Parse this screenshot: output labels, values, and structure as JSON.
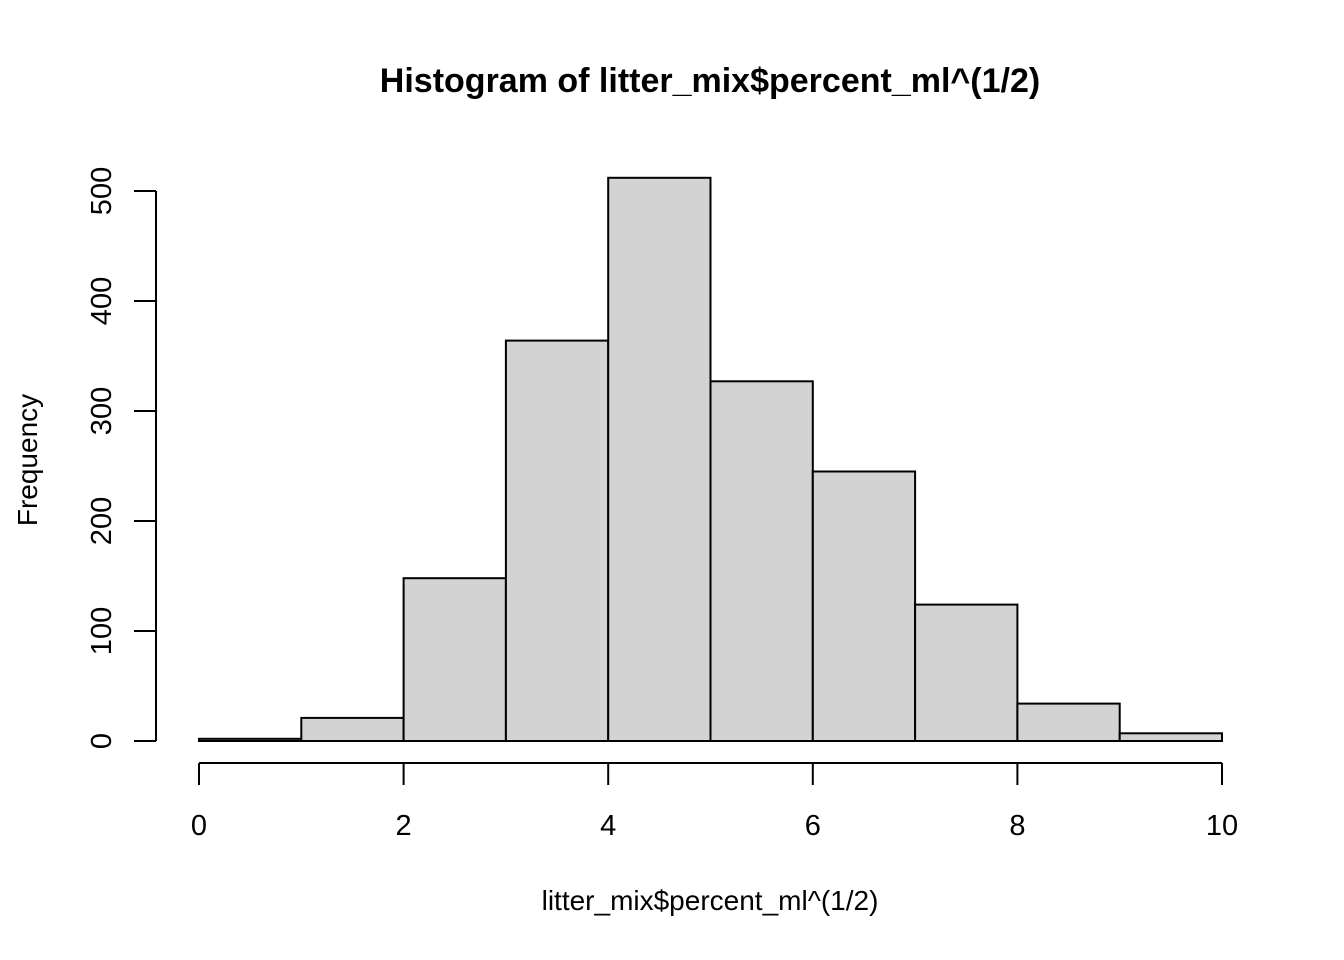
{
  "chart_data": {
    "type": "bar",
    "title": "Histogram of litter_mix$percent_ml^(1/2)",
    "xlabel": "litter_mix$percent_ml^(1/2)",
    "ylabel": "Frequency",
    "bins": [
      {
        "x0": 0,
        "x1": 1,
        "count": 2
      },
      {
        "x0": 1,
        "x1": 2,
        "count": 21
      },
      {
        "x0": 2,
        "x1": 3,
        "count": 148
      },
      {
        "x0": 3,
        "x1": 4,
        "count": 364
      },
      {
        "x0": 4,
        "x1": 5,
        "count": 512
      },
      {
        "x0": 5,
        "x1": 6,
        "count": 327
      },
      {
        "x0": 6,
        "x1": 7,
        "count": 245
      },
      {
        "x0": 7,
        "x1": 8,
        "count": 124
      },
      {
        "x0": 8,
        "x1": 9,
        "count": 34
      },
      {
        "x0": 9,
        "x1": 10,
        "count": 7
      }
    ],
    "xlim": [
      0,
      10
    ],
    "ylim": [
      0,
      500
    ],
    "x_ticks": [
      "0",
      "2",
      "4",
      "6",
      "8",
      "10"
    ],
    "y_ticks": [
      "0",
      "100",
      "200",
      "300",
      "400",
      "500"
    ],
    "bar_fill": "#d3d3d3",
    "bar_stroke": "#000000",
    "grid": false,
    "legend": "none"
  }
}
